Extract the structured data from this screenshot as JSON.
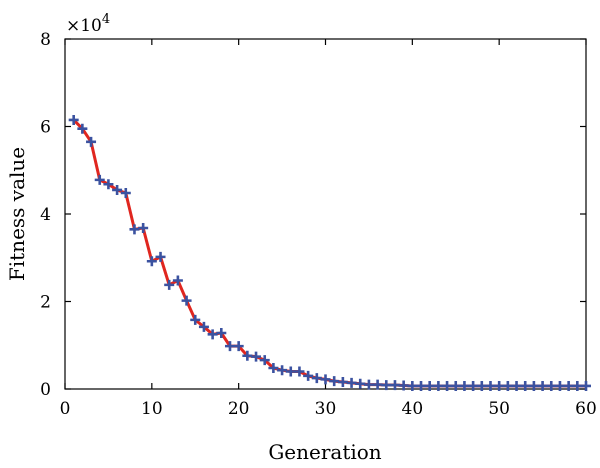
{
  "chart_data": {
    "type": "line",
    "xlabel": "Generation",
    "ylabel": "Fitness value",
    "y_multiplier_base": "×10",
    "y_multiplier_exp": "4",
    "xlim": [
      0,
      60
    ],
    "ylim": [
      0,
      8
    ],
    "x_ticks": [
      0,
      10,
      20,
      30,
      40,
      50,
      60
    ],
    "y_ticks": [
      0,
      2,
      4,
      6,
      8
    ],
    "grid": false,
    "line_color": "#e0261f",
    "marker_color": "#3b52a0",
    "marker": "plus",
    "series": [
      {
        "x": [
          1,
          2,
          3,
          4,
          5,
          6,
          7,
          8,
          9,
          10,
          11,
          12,
          13,
          14,
          15,
          16,
          17,
          18,
          19,
          20,
          21,
          22,
          23,
          24,
          25,
          26,
          27,
          28,
          29,
          30,
          31,
          32,
          33,
          34,
          35,
          36,
          37,
          38,
          39,
          40,
          41,
          42,
          43,
          44,
          45,
          46,
          47,
          48,
          49,
          50,
          51,
          52,
          53,
          54,
          55,
          56,
          57,
          58,
          59,
          60
        ],
        "y": [
          6.15,
          5.95,
          5.65,
          4.78,
          4.68,
          4.55,
          4.48,
          3.65,
          3.68,
          2.92,
          3.02,
          2.38,
          2.48,
          2.02,
          1.58,
          1.42,
          1.25,
          1.28,
          0.98,
          0.98,
          0.76,
          0.74,
          0.66,
          0.48,
          0.43,
          0.4,
          0.4,
          0.3,
          0.25,
          0.22,
          0.18,
          0.16,
          0.14,
          0.12,
          0.1,
          0.1,
          0.09,
          0.09,
          0.08,
          0.07,
          0.07,
          0.07,
          0.07,
          0.07,
          0.07,
          0.07,
          0.07,
          0.07,
          0.07,
          0.07,
          0.07,
          0.07,
          0.07,
          0.07,
          0.07,
          0.07,
          0.07,
          0.07,
          0.07,
          0.07
        ]
      }
    ]
  }
}
